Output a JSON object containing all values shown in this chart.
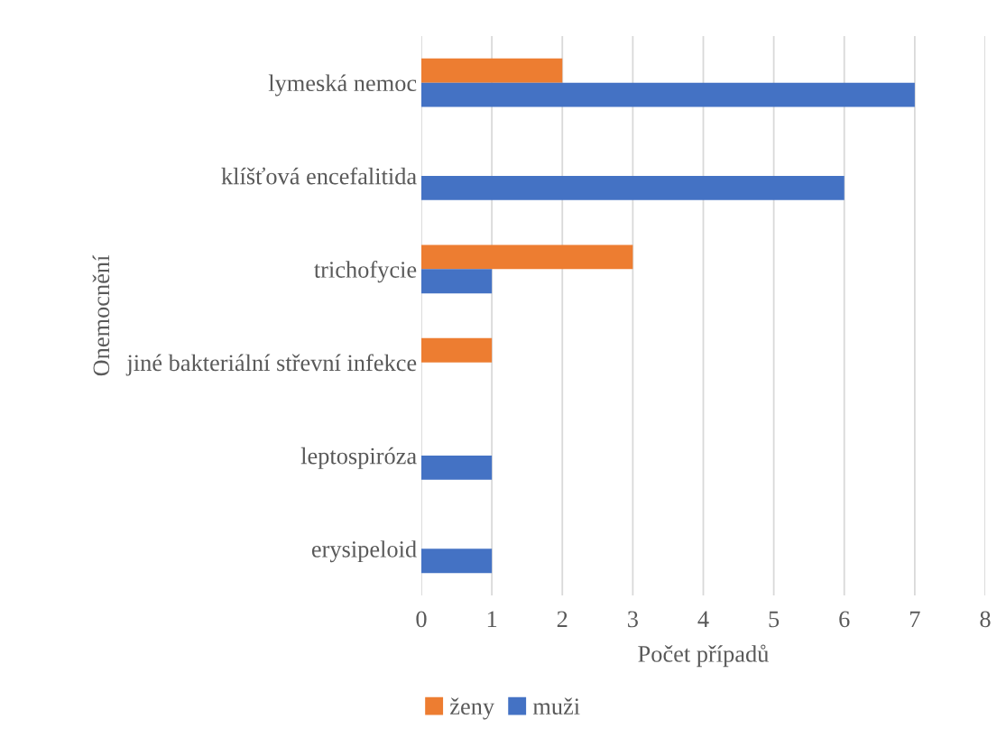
{
  "chart_data": {
    "type": "bar",
    "orientation": "horizontal",
    "xlabel": "Počet případů",
    "ylabel": "Onemocnění",
    "categories": [
      "lymeská nemoc",
      "klíšťová encefalitida",
      "trichofycie",
      "jiné bakteriální střevní infekce",
      "leptospiróza",
      "erysipeloid"
    ],
    "series": [
      {
        "name": "ženy",
        "color": "#ed7d31",
        "values": [
          2,
          null,
          3,
          1,
          null,
          null
        ]
      },
      {
        "name": "muži",
        "color": "#4472c4",
        "values": [
          7,
          6,
          1,
          null,
          1,
          1
        ]
      }
    ],
    "xlim": [
      0,
      8
    ],
    "xticks": [
      0,
      1,
      2,
      3,
      4,
      5,
      6,
      7,
      8
    ],
    "grid": "x",
    "legend": "bottom"
  }
}
